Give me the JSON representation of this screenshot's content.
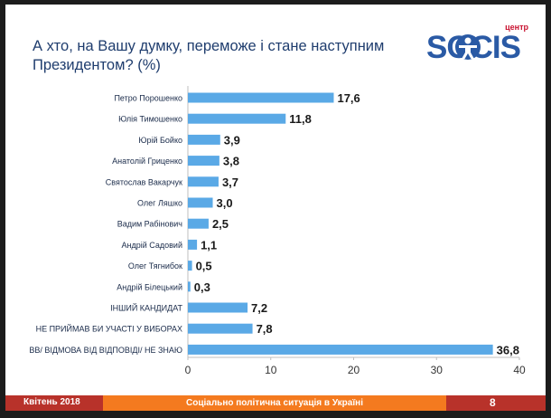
{
  "title_lines": [
    "А хто, на Вашу думку, переможе і стане наступним",
    "Президентом? (%)"
  ],
  "logo": {
    "top": "центр",
    "main": "SOCIS"
  },
  "footer": {
    "date": "Квітень 2018",
    "subject": "Соціально політична ситуація в Україні",
    "page": "8"
  },
  "colors": {
    "bar": "#5aa9e6",
    "label": "#1a2b4a",
    "value": "#1a1a1a",
    "footer_red": "#b8322a",
    "footer_orange": "#f47a1f",
    "logo_blue": "#2a5aa5"
  },
  "chart_data": {
    "type": "bar",
    "orientation": "horizontal",
    "categories": [
      "Петро Порошенко",
      "Юлія Тимошенко",
      "Юрій Бойко",
      "Анатолій Гриценко",
      "Святослав Вакарчук",
      "Олег Ляшко",
      "Вадим Рабінович",
      "Андрій Садовий",
      "Олег Тягнибок",
      "Андрій Білецький",
      "ІНШИЙ КАНДИДАТ",
      "НЕ ПРИЙМАВ БИ УЧАСТІ У ВИБОРАХ",
      "ВВ/ ВІДМОВА ВІД ВІДПОВІДІ/ НЕ ЗНАЮ"
    ],
    "values": [
      17.6,
      11.8,
      3.9,
      3.8,
      3.7,
      3.0,
      2.5,
      1.1,
      0.5,
      0.3,
      7.2,
      7.8,
      36.8
    ],
    "value_labels": [
      "17,6",
      "11,8",
      "3,9",
      "3,8",
      "3,7",
      "3,0",
      "2,5",
      "1,1",
      "0,5",
      "0,3",
      "7,2",
      "7,8",
      "36,8"
    ],
    "xlim": [
      0,
      40
    ],
    "xticks": [
      0,
      10,
      20,
      30,
      40
    ],
    "grid": false
  }
}
